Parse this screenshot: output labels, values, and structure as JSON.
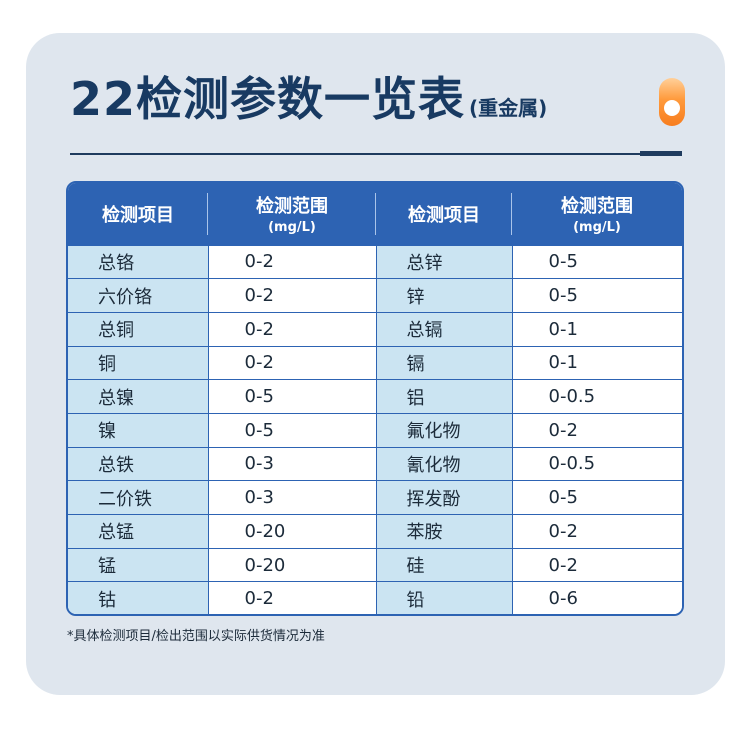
{
  "title": {
    "main": "22检测参数一览表",
    "sub": "(重金属)"
  },
  "table": {
    "headers": [
      {
        "label": "检测项目",
        "unit": ""
      },
      {
        "label": "检测范围",
        "unit": "(mg/L)"
      },
      {
        "label": "检测项目",
        "unit": ""
      },
      {
        "label": "检测范围",
        "unit": "(mg/L)"
      }
    ],
    "rows": [
      {
        "item1": "总铬",
        "range1": "0-2",
        "item2": "总锌",
        "range2": "0-5"
      },
      {
        "item1": "六价铬",
        "range1": "0-2",
        "item2": "锌",
        "range2": "0-5"
      },
      {
        "item1": "总铜",
        "range1": "0-2",
        "item2": "总镉",
        "range2": "0-1"
      },
      {
        "item1": "铜",
        "range1": "0-2",
        "item2": "镉",
        "range2": "0-1"
      },
      {
        "item1": "总镍",
        "range1": "0-5",
        "item2": "铝",
        "range2": "0-0.5"
      },
      {
        "item1": "镍",
        "range1": "0-5",
        "item2": "氟化物",
        "range2": "0-2"
      },
      {
        "item1": "总铁",
        "range1": "0-3",
        "item2": "氰化物",
        "range2": "0-0.5"
      },
      {
        "item1": "二价铁",
        "range1": "0-3",
        "item2": "挥发酚",
        "range2": "0-5"
      },
      {
        "item1": "总锰",
        "range1": "0-20",
        "item2": "苯胺",
        "range2": "0-2"
      },
      {
        "item1": "锰",
        "range1": "0-20",
        "item2": "硅",
        "range2": "0-2"
      },
      {
        "item1": "钴",
        "range1": "0-2",
        "item2": "铅",
        "range2": "0-6"
      }
    ]
  },
  "footnote": "*具体检测项目/检出范围以实际供货情况为准",
  "colors": {
    "card_bg": "#dfe6ee",
    "title": "#183a62",
    "header_bg": "#2d63b3",
    "name_cell_bg": "#cbe4f2",
    "accent_toggle": "#f77d1e"
  },
  "icons": {
    "toggle": "toggle-switch-icon"
  }
}
